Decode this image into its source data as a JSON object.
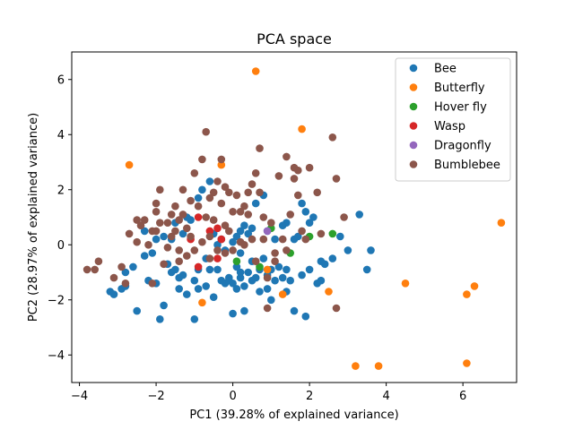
{
  "chart_data": {
    "type": "scatter",
    "title": "PCA space",
    "xlabel": "PC1 (39.28% of explained variance)",
    "ylabel": "PC2 (28.97% of explained variance)",
    "xlim": [
      -4.2,
      7.4
    ],
    "ylim": [
      -5.0,
      7.0
    ],
    "xticks": [
      -4,
      -2,
      0,
      2,
      4,
      6
    ],
    "yticks": [
      -4,
      -2,
      0,
      2,
      4,
      6
    ],
    "grid": false,
    "legend_position": "top-right",
    "series": [
      {
        "name": "Bee",
        "color": "#1f77b4",
        "points": [
          [
            -2.5,
            -2.4
          ],
          [
            -3.2,
            -1.7
          ],
          [
            -3.1,
            -1.8
          ],
          [
            -2.9,
            -1.6
          ],
          [
            -2.8,
            -1.5
          ],
          [
            -2.8,
            -1.0
          ],
          [
            -2.3,
            -0.4
          ],
          [
            -2.2,
            -1.3
          ],
          [
            -2.0,
            -1.4
          ],
          [
            -1.9,
            -2.7
          ],
          [
            -1.8,
            -2.2
          ],
          [
            -1.7,
            -0.7
          ],
          [
            -1.6,
            -1.0
          ],
          [
            -1.5,
            -0.9
          ],
          [
            -1.4,
            -1.2
          ],
          [
            -1.4,
            -1.6
          ],
          [
            -1.2,
            -1.8
          ],
          [
            -1.0,
            -2.7
          ],
          [
            -1.0,
            -1.3
          ],
          [
            -0.9,
            -0.9
          ],
          [
            -0.9,
            -1.6
          ],
          [
            -0.7,
            -0.5
          ],
          [
            -0.6,
            -0.9
          ],
          [
            -0.5,
            -1.9
          ],
          [
            -0.4,
            -0.9
          ],
          [
            -0.3,
            -1.3
          ],
          [
            -0.2,
            -1.4
          ],
          [
            -0.1,
            -1.2
          ],
          [
            -0.1,
            -1.3
          ],
          [
            0.0,
            -1.4
          ],
          [
            0.0,
            -2.5
          ],
          [
            0.1,
            -1.6
          ],
          [
            0.1,
            -0.8
          ],
          [
            0.2,
            -1.2
          ],
          [
            0.2,
            -1.0
          ],
          [
            0.3,
            -2.4
          ],
          [
            0.3,
            -1.5
          ],
          [
            0.4,
            -1.0
          ],
          [
            0.5,
            -0.6
          ],
          [
            0.6,
            -1.2
          ],
          [
            0.7,
            -0.9
          ],
          [
            0.7,
            -1.7
          ],
          [
            0.8,
            -0.5
          ],
          [
            0.9,
            -1.1
          ],
          [
            0.9,
            -1.6
          ],
          [
            1.0,
            -2.0
          ],
          [
            1.1,
            -1.3
          ],
          [
            1.2,
            -0.8
          ],
          [
            1.3,
            -1.2
          ],
          [
            1.4,
            -1.7
          ],
          [
            1.4,
            -0.9
          ],
          [
            1.5,
            -1.3
          ],
          [
            1.6,
            -2.4
          ],
          [
            1.8,
            -1.1
          ],
          [
            1.9,
            -2.6
          ],
          [
            2.0,
            -0.9
          ],
          [
            2.2,
            -1.4
          ],
          [
            2.3,
            -0.6
          ],
          [
            2.4,
            -0.7
          ],
          [
            2.6,
            -0.5
          ],
          [
            3.0,
            -0.2
          ],
          [
            3.5,
            -0.9
          ],
          [
            3.6,
            -0.2
          ],
          [
            3.3,
            1.1
          ],
          [
            2.8,
            0.3
          ],
          [
            2.1,
            1.0
          ],
          [
            2.0,
            0.8
          ],
          [
            1.9,
            1.2
          ],
          [
            1.8,
            1.5
          ],
          [
            1.6,
            0.2
          ],
          [
            1.4,
            0.8
          ],
          [
            1.3,
            0.7
          ],
          [
            1.1,
            0.2
          ],
          [
            0.9,
            0.5
          ],
          [
            0.8,
            1.8
          ],
          [
            0.6,
            1.5
          ],
          [
            0.5,
            0.6
          ],
          [
            0.4,
            0.4
          ],
          [
            0.3,
            0.7
          ],
          [
            0.2,
            0.5
          ],
          [
            0.1,
            0.3
          ],
          [
            0.0,
            0.1
          ],
          [
            -0.2,
            -0.2
          ],
          [
            -0.3,
            0.2
          ],
          [
            -0.5,
            0.4
          ],
          [
            -0.6,
            2.3
          ],
          [
            -0.8,
            2.0
          ],
          [
            -0.9,
            1.7
          ],
          [
            -1.1,
            0.9
          ],
          [
            -1.2,
            1.0
          ],
          [
            -1.3,
            0.4
          ],
          [
            -1.5,
            0.8
          ],
          [
            -1.6,
            0.2
          ],
          [
            -1.8,
            0.3
          ],
          [
            -2.0,
            0.2
          ],
          [
            -2.1,
            -0.3
          ],
          [
            -2.3,
            0.5
          ],
          [
            -0.4,
            0.0
          ],
          [
            0.2,
            -0.3
          ],
          [
            1.7,
            0.3
          ],
          [
            -0.7,
            -1.5
          ],
          [
            -1.3,
            -1.1
          ],
          [
            1.0,
            -0.9
          ],
          [
            0.5,
            -1.3
          ],
          [
            -2.6,
            -0.8
          ],
          [
            2.3,
            -1.3
          ]
        ]
      },
      {
        "name": "Butterfly",
        "color": "#ff7f0e",
        "points": [
          [
            0.6,
            6.3
          ],
          [
            1.8,
            4.2
          ],
          [
            -2.7,
            2.9
          ],
          [
            -0.3,
            2.9
          ],
          [
            -0.8,
            -2.1
          ],
          [
            0.9,
            -0.9
          ],
          [
            1.3,
            -1.8
          ],
          [
            2.5,
            -1.7
          ],
          [
            3.2,
            -4.4
          ],
          [
            3.8,
            -4.4
          ],
          [
            4.5,
            -1.4
          ],
          [
            6.1,
            -1.8
          ],
          [
            6.1,
            -4.3
          ],
          [
            6.3,
            -1.5
          ],
          [
            7.0,
            0.8
          ]
        ]
      },
      {
        "name": "Hover fly",
        "color": "#2ca02c",
        "points": [
          [
            0.1,
            -0.6
          ],
          [
            0.7,
            -0.8
          ],
          [
            1.0,
            0.6
          ],
          [
            1.5,
            -0.3
          ],
          [
            2.0,
            0.3
          ],
          [
            2.6,
            0.4
          ]
        ]
      },
      {
        "name": "Wasp",
        "color": "#d62728",
        "points": [
          [
            -0.9,
            1.0
          ],
          [
            -0.6,
            0.5
          ],
          [
            -1.1,
            0.2
          ],
          [
            -0.4,
            0.6
          ],
          [
            -0.3,
            0.2
          ],
          [
            -0.9,
            -0.8
          ],
          [
            -0.4,
            -0.5
          ]
        ]
      },
      {
        "name": "Dragonfly",
        "color": "#9467bd",
        "points": [
          [
            0.9,
            0.5
          ]
        ]
      },
      {
        "name": "Bumblebee",
        "color": "#8c564b",
        "points": [
          [
            -3.8,
            -0.9
          ],
          [
            -3.6,
            -0.9
          ],
          [
            -3.5,
            -0.6
          ],
          [
            -3.1,
            -1.2
          ],
          [
            -2.9,
            -0.8
          ],
          [
            -2.5,
            0.1
          ],
          [
            -2.5,
            0.9
          ],
          [
            -2.4,
            0.7
          ],
          [
            -2.3,
            0.9
          ],
          [
            -2.2,
            0.0
          ],
          [
            -2.1,
            0.5
          ],
          [
            -2.0,
            1.2
          ],
          [
            -2.0,
            1.5
          ],
          [
            -1.9,
            2.0
          ],
          [
            -1.9,
            0.8
          ],
          [
            -1.8,
            -0.7
          ],
          [
            -1.7,
            0.8
          ],
          [
            -1.6,
            1.1
          ],
          [
            -1.6,
            0.3
          ],
          [
            -1.5,
            1.4
          ],
          [
            -1.5,
            0.5
          ],
          [
            -1.4,
            -0.2
          ],
          [
            -1.4,
            -0.6
          ],
          [
            -1.3,
            2.0
          ],
          [
            -1.3,
            1.1
          ],
          [
            -1.2,
            0.6
          ],
          [
            -1.1,
            1.6
          ],
          [
            -1.1,
            0.3
          ],
          [
            -1.0,
            2.6
          ],
          [
            -1.0,
            -0.2
          ],
          [
            -0.9,
            1.4
          ],
          [
            -0.8,
            3.1
          ],
          [
            -0.8,
            0.1
          ],
          [
            -0.7,
            4.1
          ],
          [
            -0.7,
            1.0
          ],
          [
            -0.6,
            0.3
          ],
          [
            -0.6,
            -0.5
          ],
          [
            -0.5,
            1.9
          ],
          [
            -0.5,
            0.9
          ],
          [
            -0.4,
            2.3
          ],
          [
            -0.4,
            -0.2
          ],
          [
            -0.3,
            3.1
          ],
          [
            -0.3,
            1.5
          ],
          [
            -0.2,
            0.7
          ],
          [
            -0.2,
            -0.3
          ],
          [
            -0.1,
            1.9
          ],
          [
            -0.1,
            0.5
          ],
          [
            0.0,
            1.2
          ],
          [
            0.0,
            -0.2
          ],
          [
            0.1,
            1.8
          ],
          [
            0.2,
            1.2
          ],
          [
            0.2,
            0.1
          ],
          [
            0.3,
            0.0
          ],
          [
            0.4,
            1.9
          ],
          [
            0.4,
            1.1
          ],
          [
            0.5,
            2.2
          ],
          [
            0.5,
            0.2
          ],
          [
            0.6,
            2.6
          ],
          [
            0.6,
            -0.6
          ],
          [
            0.7,
            1.9
          ],
          [
            0.7,
            3.5
          ],
          [
            0.8,
            1.0
          ],
          [
            0.8,
            0.2
          ],
          [
            0.9,
            -1.2
          ],
          [
            0.9,
            -2.3
          ],
          [
            1.0,
            0.8
          ],
          [
            1.1,
            -0.3
          ],
          [
            1.2,
            2.5
          ],
          [
            1.3,
            0.2
          ],
          [
            1.4,
            3.2
          ],
          [
            1.4,
            -0.2
          ],
          [
            1.5,
            1.1
          ],
          [
            1.6,
            2.8
          ],
          [
            1.6,
            2.4
          ],
          [
            1.7,
            2.7
          ],
          [
            1.7,
            1.8
          ],
          [
            1.8,
            0.5
          ],
          [
            1.9,
            0.2
          ],
          [
            2.0,
            2.8
          ],
          [
            2.2,
            1.9
          ],
          [
            2.3,
            0.4
          ],
          [
            2.6,
            3.9
          ],
          [
            2.7,
            2.4
          ],
          [
            2.7,
            -2.3
          ],
          [
            2.9,
            1.0
          ],
          [
            -2.0,
            0.5
          ],
          [
            -1.7,
            -0.1
          ],
          [
            -1.2,
            -0.4
          ],
          [
            -2.7,
            0.4
          ],
          [
            -2.8,
            -1.4
          ],
          [
            -2.1,
            -1.4
          ],
          [
            0.3,
            1.4
          ],
          [
            1.1,
            -0.6
          ],
          [
            -0.6,
            1.7
          ],
          [
            -1.4,
            0.9
          ],
          [
            -0.2,
            2.1
          ]
        ]
      }
    ]
  }
}
